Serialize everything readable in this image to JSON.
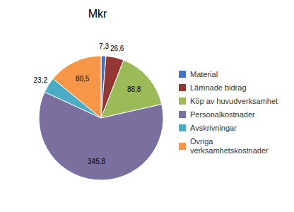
{
  "chart_data": {
    "type": "pie",
    "title": "Mkr",
    "categories": [
      "Material",
      "Lämnade bidrag",
      "Köp av huvudverksamhet",
      "Personalkostnader",
      "Avskrivningar",
      "Övriga\nverksamhetskostnader"
    ],
    "values": [
      7.3,
      26.6,
      88.8,
      345.8,
      23.2,
      80.5
    ],
    "value_labels": [
      "7,3",
      "26,6",
      "88,8",
      "345,8",
      "23,2",
      "80,5"
    ],
    "colors": [
      "#4472C4",
      "#943634",
      "#9BBB59",
      "#7B6FA0",
      "#4BACC6",
      "#F79646"
    ],
    "data_labels": true,
    "legend": "right"
  }
}
